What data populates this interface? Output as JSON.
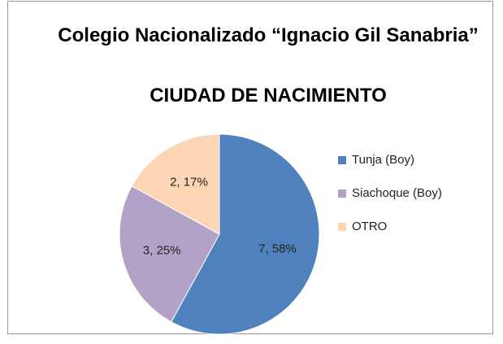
{
  "chart_data": {
    "type": "pie",
    "title": "Colegio Nacionalizado “Ignacio Gil Sanabria”",
    "subtitle": "CIUDAD DE NACIMIENTO",
    "categories": [
      "Tunja (Boy)",
      "Siachoque (Boy)",
      "OTRO"
    ],
    "values": [
      58,
      25,
      17
    ],
    "value_labels": [
      "7, 58%",
      "3, 25%",
      "2, 17%"
    ],
    "colors": [
      "#4f81bd",
      "#b3a2c7",
      "#fcd5b5"
    ],
    "legend": "right"
  }
}
